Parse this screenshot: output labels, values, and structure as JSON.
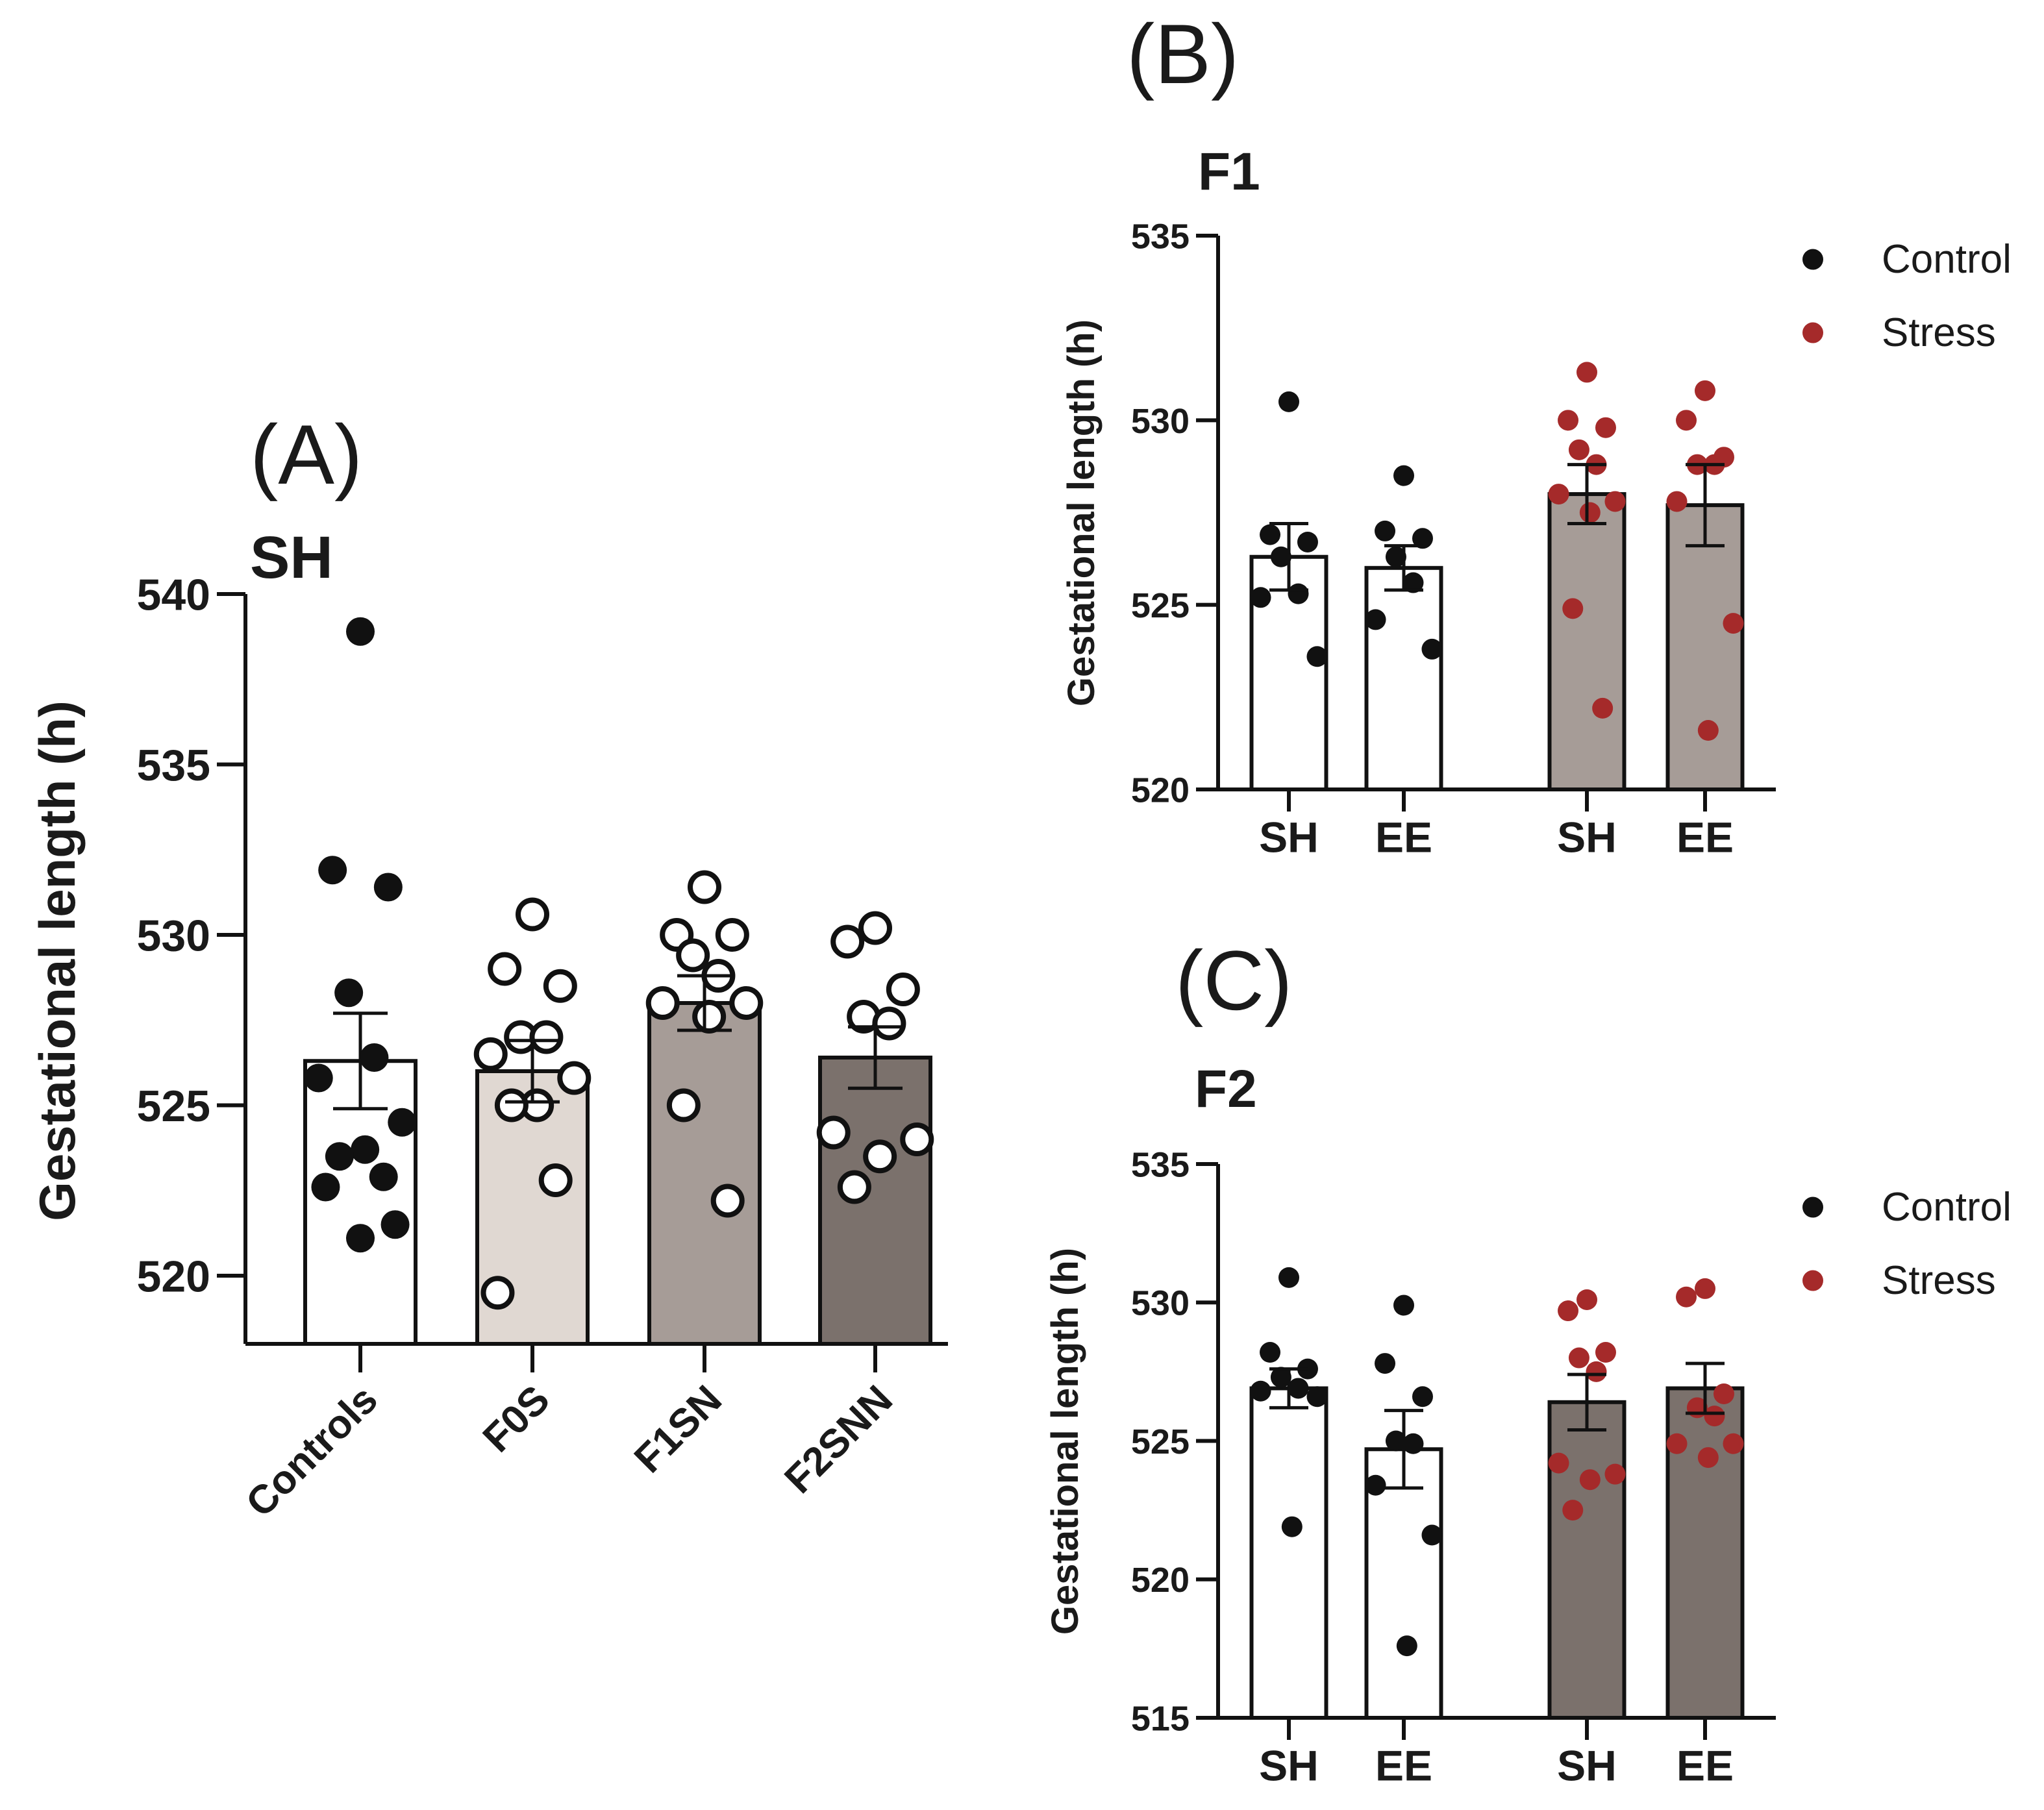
{
  "colors": {
    "axis": "#111111",
    "control_dot": "#111111",
    "stress_dot": "#a52a2a",
    "bar_white": "#ffffff",
    "bar_light": "#e0d8d2",
    "bar_medium": "#a69c97",
    "bar_dark": "#7b716c"
  },
  "chart_data": [
    {
      "panel": "(A)",
      "type": "bar",
      "title": "SH",
      "xlabel": "",
      "ylabel": "Gestational length (h)",
      "ylim": [
        518,
        540
      ],
      "yticks": [
        520,
        525,
        530,
        535,
        540
      ],
      "categories": [
        "Controls",
        "F0S",
        "F1SN",
        "F2SNN"
      ],
      "means": [
        526.3,
        526.0,
        528.0,
        526.4
      ],
      "sems": [
        1.4,
        0.9,
        0.8,
        0.9
      ],
      "points": [
        [
          538.9,
          531.9,
          531.4,
          528.3,
          526.4,
          525.8,
          524.5,
          523.7,
          523.5,
          522.9,
          522.6,
          521.5,
          521.1
        ],
        [
          530.6,
          529.0,
          528.5,
          527.0,
          527.0,
          526.5,
          525.8,
          525.0,
          525.0,
          522.8,
          519.5
        ],
        [
          531.4,
          530.0,
          530.0,
          529.4,
          528.8,
          528.0,
          528.0,
          527.6,
          525.0,
          522.2
        ],
        [
          530.2,
          529.8,
          528.4,
          527.6,
          527.4,
          524.2,
          524.0,
          523.5,
          522.6
        ]
      ],
      "open_markers": [
        false,
        true,
        true,
        true
      ]
    },
    {
      "panel": "(B)",
      "type": "bar",
      "title": "F1",
      "xlabel": "",
      "ylabel": "Gestational length (h)",
      "ylim": [
        520,
        535
      ],
      "yticks": [
        520,
        525,
        530,
        535
      ],
      "categories": [
        "SH",
        "EE",
        "SH",
        "EE"
      ],
      "groups": [
        "Control",
        "Control",
        "Stress",
        "Stress"
      ],
      "means": [
        526.3,
        526.0,
        528.0,
        527.7
      ],
      "sems": [
        0.9,
        0.6,
        0.8,
        1.1
      ],
      "points": [
        [
          530.5,
          526.9,
          526.7,
          526.3,
          525.3,
          525.2,
          523.6
        ],
        [
          528.5,
          527.0,
          526.8,
          526.3,
          525.6,
          524.6,
          523.8
        ],
        [
          531.3,
          530.0,
          529.8,
          529.2,
          528.8,
          528.0,
          527.8,
          527.5,
          524.9,
          522.2
        ],
        [
          530.8,
          530.0,
          529.0,
          528.8,
          528.8,
          527.8,
          524.5,
          521.6
        ]
      ],
      "legend": [
        "Control",
        "Stress"
      ]
    },
    {
      "panel": "(C)",
      "type": "bar",
      "title": "F2",
      "xlabel": "",
      "ylabel": "Gestational length (h)",
      "ylim": [
        515,
        535
      ],
      "yticks": [
        515,
        520,
        525,
        530,
        535
      ],
      "categories": [
        "SH",
        "EE",
        "SH",
        "EE"
      ],
      "groups": [
        "Control",
        "Control",
        "Stress",
        "Stress"
      ],
      "means": [
        526.9,
        524.7,
        526.4,
        526.9
      ],
      "sems": [
        0.7,
        1.4,
        1.0,
        0.9
      ],
      "points": [
        [
          530.9,
          528.2,
          527.6,
          527.3,
          526.9,
          526.8,
          526.6,
          521.9
        ],
        [
          529.9,
          527.8,
          526.6,
          525.0,
          524.9,
          523.4,
          521.6,
          517.6
        ],
        [
          530.1,
          529.7,
          528.2,
          528.0,
          527.5,
          524.2,
          523.8,
          523.6,
          522.5
        ],
        [
          530.5,
          530.2,
          526.7,
          526.2,
          525.9,
          524.9,
          524.9,
          524.4
        ]
      ],
      "legend": [
        "Control",
        "Stress"
      ]
    }
  ]
}
